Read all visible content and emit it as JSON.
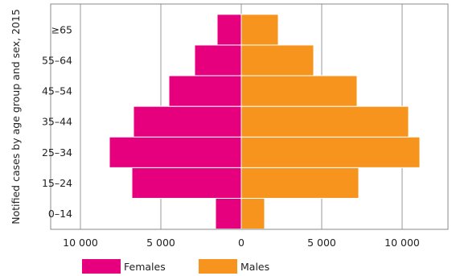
{
  "chart_data": {
    "type": "bar",
    "orientation": "horizontal-population-pyramid",
    "categories": [
      "0–14",
      "15–24",
      "25–34",
      "35–44",
      "45–54",
      "55–64",
      "≥65"
    ],
    "series": [
      {
        "name": "Females",
        "values": [
          1600,
          6800,
          8200,
          6700,
          4500,
          2900,
          1500
        ],
        "color": "#e6007e"
      },
      {
        "name": "Males",
        "values": [
          1450,
          7300,
          11100,
          10400,
          7200,
          4500,
          2300
        ],
        "color": "#f7941d"
      }
    ],
    "ylabel": "Notified cases by age group and sex, 2015",
    "xlim": [
      -13000,
      13000
    ],
    "x_ticks": [
      -10000,
      -5000,
      0,
      5000,
      10000
    ],
    "x_tick_labels": [
      "10 000",
      "5 000",
      "0",
      "5 000",
      "10 000"
    ],
    "grid": "vertical",
    "legend_position": "bottom-left"
  }
}
